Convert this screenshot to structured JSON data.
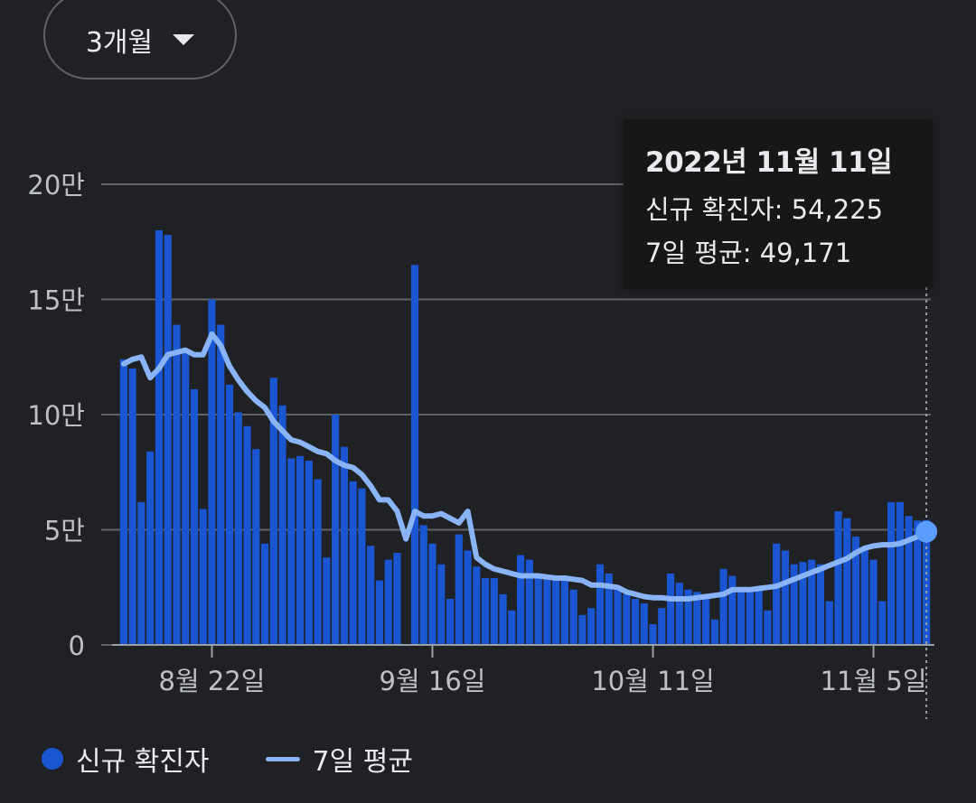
{
  "range_selector": {
    "label": "3개월",
    "icon": "caret-down-icon"
  },
  "tooltip": {
    "date": "2022년 11월 11일",
    "new_cases_label": "신규 확진자",
    "new_cases_value": "54,225",
    "avg_label": "7일 평균",
    "avg_value": "49,171"
  },
  "legend": {
    "bars_label": "신규 확진자",
    "line_label": "7일 평균"
  },
  "colors": {
    "bar": "#1a56d2",
    "line": "#8ab4f8",
    "marker": "#5b9cff",
    "grid": "#5f6368"
  },
  "chart_data": {
    "type": "bar",
    "title": "",
    "xlabel": "",
    "ylabel": "",
    "ylim": [
      0,
      200000
    ],
    "y_ticks": [
      {
        "value": 0,
        "label": "0"
      },
      {
        "value": 50000,
        "label": "5만"
      },
      {
        "value": 100000,
        "label": "10만"
      },
      {
        "value": 150000,
        "label": "15만"
      },
      {
        "value": 200000,
        "label": "20만"
      }
    ],
    "x_ticks": [
      {
        "date": "2022-08-22",
        "label": "8월 22일"
      },
      {
        "date": "2022-09-16",
        "label": "9월 16일"
      },
      {
        "date": "2022-10-11",
        "label": "10월 11일"
      },
      {
        "date": "2022-11-05",
        "label": "11월 5일"
      }
    ],
    "x_start": "2022-08-12",
    "x_end": "2022-11-11",
    "grid": true,
    "legend_position": "bottom-left",
    "highlight_date": "2022-11-11",
    "series": [
      {
        "name": "신규 확진자",
        "type": "bar",
        "values": [
          124000,
          120000,
          62000,
          84000,
          180000,
          178000,
          139000,
          128000,
          111000,
          59000,
          150000,
          139000,
          113000,
          101000,
          95000,
          85000,
          44000,
          116000,
          104000,
          81000,
          82000,
          80000,
          72000,
          38000,
          100000,
          86000,
          71000,
          68000,
          43000,
          28000,
          37000,
          40000,
          0,
          165000,
          52000,
          44000,
          35000,
          20000,
          48000,
          41000,
          34000,
          29000,
          29000,
          22000,
          15000,
          39000,
          37000,
          30000,
          29000,
          30000,
          29000,
          24000,
          13000,
          16000,
          35000,
          31000,
          24000,
          22000,
          20000,
          18000,
          9000,
          16000,
          31000,
          27000,
          24000,
          23000,
          22000,
          11000,
          33000,
          30000,
          25000,
          23000,
          24000,
          15000,
          44000,
          41000,
          35000,
          36000,
          37000,
          35000,
          19000,
          58000,
          55000,
          47000,
          42000,
          37000,
          19000,
          62000,
          62000,
          56000,
          54000,
          54225
        ]
      },
      {
        "name": "7일 평균",
        "type": "line",
        "values": [
          122000,
          124000,
          125000,
          116000,
          120000,
          126000,
          127000,
          128000,
          126000,
          126000,
          135000,
          130000,
          121000,
          115000,
          110000,
          106000,
          103000,
          97000,
          93000,
          89000,
          88000,
          86000,
          84000,
          83000,
          80000,
          78000,
          77000,
          74000,
          69000,
          63000,
          63000,
          58000,
          46000,
          58000,
          56000,
          56000,
          57000,
          55000,
          53000,
          58000,
          38000,
          35000,
          33000,
          32000,
          31000,
          30000,
          30000,
          30000,
          29500,
          29000,
          29000,
          28500,
          28000,
          26000,
          26000,
          25500,
          25000,
          23000,
          22000,
          21000,
          20500,
          20500,
          20000,
          20000,
          20000,
          20500,
          21000,
          21500,
          22000,
          24000,
          24000,
          24000,
          24500,
          25000,
          25500,
          27000,
          28500,
          30000,
          31500,
          33000,
          34500,
          36000,
          37500,
          40000,
          42000,
          43000,
          43500,
          43500,
          44000,
          45500,
          47000,
          49171
        ]
      }
    ]
  }
}
